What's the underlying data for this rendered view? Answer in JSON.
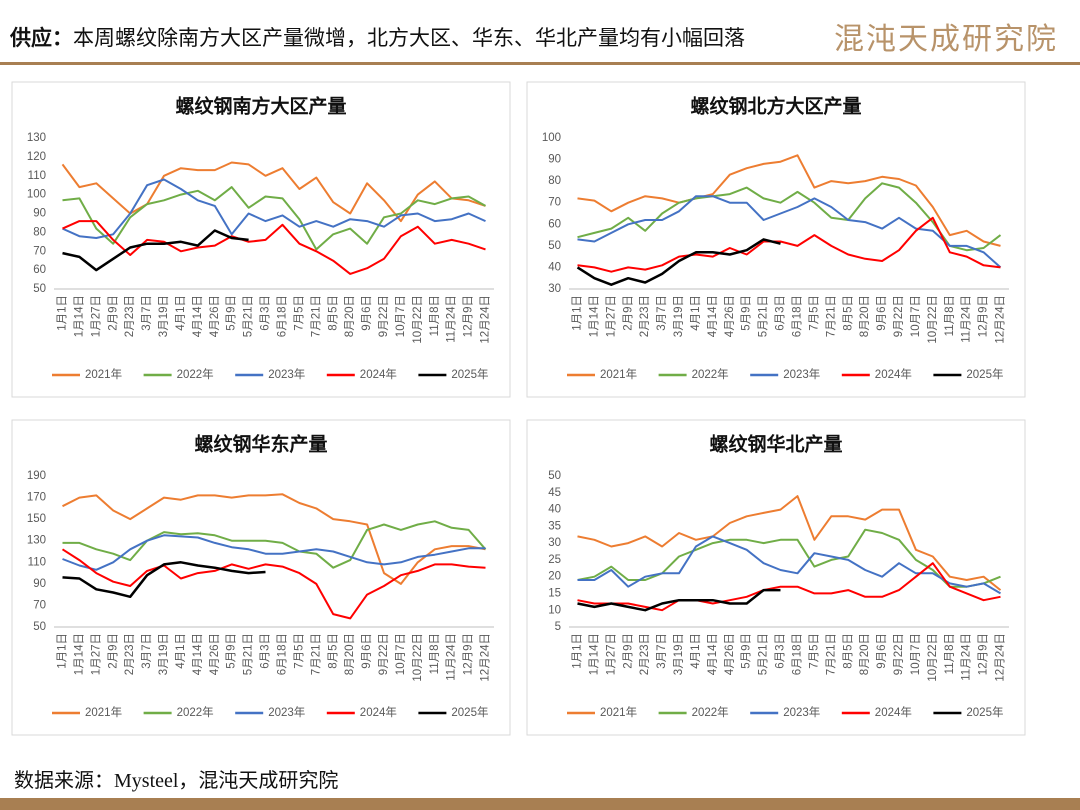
{
  "header": {
    "label": "供应：",
    "title": "本周螺纹除南方大区产量微增，北方大区、华东、华北产量均有小幅回落",
    "logo": "混沌天成研究院"
  },
  "footer": {
    "source": "数据来源：Mysteel，混沌天成研究院"
  },
  "chart_data": [
    {
      "type": "line",
      "title": "螺纹钢南方大区产量",
      "legend": "bottom",
      "grid": false,
      "categories": [
        "1月1日",
        "1月14日",
        "1月27日",
        "2月9日",
        "2月23日",
        "3月7日",
        "3月19日",
        "4月1日",
        "4月14日",
        "4月26日",
        "5月9日",
        "5月21日",
        "6月3日",
        "6月18日",
        "7月5日",
        "7月21日",
        "8月5日",
        "8月20日",
        "9月6日",
        "9月22日",
        "10月7日",
        "10月22日",
        "11月8日",
        "11月24日",
        "12月9日",
        "12月24日"
      ],
      "ylim": [
        50,
        130
      ],
      "yticks": [
        50,
        60,
        70,
        80,
        90,
        100,
        110,
        120,
        130
      ],
      "series": [
        {
          "name": "2021年",
          "color": "#ed7d31",
          "values": [
            116,
            104,
            106,
            98,
            90,
            95,
            110,
            114,
            113,
            113,
            117,
            116,
            110,
            114,
            103,
            109,
            96,
            90,
            106,
            97,
            86,
            100,
            107,
            98,
            97,
            94
          ]
        },
        {
          "name": "2022年",
          "color": "#70ad47",
          "values": [
            97,
            98,
            82,
            74,
            88,
            95,
            97,
            100,
            102,
            97,
            104,
            93,
            99,
            98,
            87,
            71,
            79,
            82,
            74,
            88,
            90,
            97,
            95,
            98,
            99,
            94
          ]
        },
        {
          "name": "2023年",
          "color": "#4472c4",
          "values": [
            82,
            78,
            77,
            79,
            90,
            105,
            108,
            103,
            97,
            94,
            79,
            90,
            86,
            89,
            83,
            86,
            83,
            87,
            86,
            83,
            89,
            90,
            86,
            87,
            90,
            86
          ]
        },
        {
          "name": "2024年",
          "color": "#ff0000",
          "values": [
            82,
            86,
            86,
            76,
            68,
            76,
            75,
            70,
            72,
            73,
            78,
            75,
            76,
            84,
            74,
            70,
            65,
            58,
            61,
            66,
            78,
            83,
            74,
            76,
            74,
            71
          ]
        },
        {
          "name": "2025年",
          "color": "#000000",
          "values": [
            69,
            67,
            60,
            66,
            72,
            74,
            74,
            75,
            73,
            81,
            77,
            76,
            null,
            null,
            null,
            null,
            null,
            null,
            null,
            null,
            null,
            null,
            null,
            null,
            null,
            null
          ]
        }
      ]
    },
    {
      "type": "line",
      "title": "螺纹钢北方大区产量",
      "legend": "bottom",
      "grid": false,
      "categories": [
        "1月1日",
        "1月14日",
        "1月27日",
        "2月9日",
        "2月23日",
        "3月7日",
        "3月19日",
        "4月1日",
        "4月14日",
        "4月26日",
        "5月9日",
        "5月21日",
        "6月3日",
        "6月18日",
        "7月5日",
        "7月21日",
        "8月5日",
        "8月20日",
        "9月6日",
        "9月22日",
        "10月7日",
        "10月22日",
        "11月8日",
        "11月24日",
        "12月9日",
        "12月24日"
      ],
      "ylim": [
        30,
        100
      ],
      "yticks": [
        30,
        40,
        50,
        60,
        70,
        80,
        90,
        100
      ],
      "series": [
        {
          "name": "2021年",
          "color": "#ed7d31",
          "values": [
            72,
            71,
            66,
            70,
            73,
            72,
            70,
            72,
            74,
            83,
            86,
            88,
            89,
            92,
            77,
            80,
            79,
            80,
            82,
            81,
            78,
            68,
            55,
            57,
            52,
            50
          ]
        },
        {
          "name": "2022年",
          "color": "#70ad47",
          "values": [
            54,
            56,
            58,
            63,
            57,
            65,
            70,
            72,
            73,
            74,
            77,
            72,
            70,
            75,
            70,
            63,
            62,
            72,
            79,
            77,
            70,
            61,
            50,
            48,
            49,
            55
          ]
        },
        {
          "name": "2023年",
          "color": "#4472c4",
          "values": [
            53,
            52,
            56,
            60,
            62,
            62,
            66,
            73,
            73,
            70,
            70,
            62,
            65,
            68,
            72,
            68,
            62,
            61,
            58,
            63,
            58,
            57,
            50,
            50,
            47,
            40
          ]
        },
        {
          "name": "2024年",
          "color": "#ff0000",
          "values": [
            41,
            40,
            38,
            40,
            39,
            41,
            45,
            46,
            45,
            49,
            46,
            52,
            52,
            50,
            55,
            50,
            46,
            44,
            43,
            48,
            57,
            63,
            47,
            45,
            41,
            40
          ]
        },
        {
          "name": "2025年",
          "color": "#000000",
          "values": [
            40,
            35,
            32,
            35,
            33,
            37,
            43,
            47,
            47,
            46,
            48,
            53,
            51,
            null,
            null,
            null,
            null,
            null,
            null,
            null,
            null,
            null,
            null,
            null,
            null,
            null
          ]
        }
      ]
    },
    {
      "type": "line",
      "title": "螺纹钢华东产量",
      "legend": "bottom",
      "grid": false,
      "categories": [
        "1月1日",
        "1月14日",
        "1月27日",
        "2月9日",
        "2月23日",
        "3月7日",
        "3月19日",
        "4月1日",
        "4月14日",
        "4月26日",
        "5月9日",
        "5月21日",
        "6月3日",
        "6月18日",
        "7月5日",
        "7月21日",
        "8月5日",
        "8月20日",
        "9月6日",
        "9月22日",
        "10月7日",
        "10月22日",
        "11月8日",
        "11月24日",
        "12月9日",
        "12月24日"
      ],
      "ylim": [
        50,
        190
      ],
      "yticks": [
        50,
        70,
        90,
        110,
        130,
        150,
        170,
        190
      ],
      "series": [
        {
          "name": "2021年",
          "color": "#ed7d31",
          "values": [
            162,
            170,
            172,
            158,
            150,
            160,
            170,
            168,
            172,
            172,
            170,
            172,
            172,
            173,
            165,
            160,
            150,
            148,
            145,
            100,
            90,
            110,
            122,
            125,
            125,
            122
          ]
        },
        {
          "name": "2022年",
          "color": "#70ad47",
          "values": [
            128,
            128,
            122,
            118,
            112,
            130,
            138,
            136,
            137,
            135,
            130,
            130,
            130,
            128,
            120,
            118,
            105,
            112,
            140,
            145,
            140,
            145,
            148,
            142,
            140,
            122
          ]
        },
        {
          "name": "2023年",
          "color": "#4472c4",
          "values": [
            113,
            107,
            103,
            110,
            122,
            130,
            135,
            134,
            133,
            128,
            124,
            122,
            118,
            118,
            120,
            122,
            120,
            115,
            110,
            108,
            110,
            115,
            117,
            120,
            123,
            123
          ]
        },
        {
          "name": "2024年",
          "color": "#ff0000",
          "values": [
            122,
            112,
            100,
            92,
            88,
            102,
            107,
            95,
            100,
            102,
            108,
            104,
            108,
            106,
            100,
            90,
            62,
            58,
            80,
            88,
            98,
            102,
            108,
            108,
            106,
            105
          ]
        },
        {
          "name": "2025年",
          "color": "#000000",
          "values": [
            96,
            95,
            85,
            82,
            78,
            98,
            108,
            110,
            107,
            105,
            102,
            100,
            101,
            null,
            null,
            null,
            null,
            null,
            null,
            null,
            null,
            null,
            null,
            null,
            null,
            null
          ]
        }
      ]
    },
    {
      "type": "line",
      "title": "螺纹钢华北产量",
      "legend": "bottom",
      "grid": false,
      "categories": [
        "1月1日",
        "1月14日",
        "1月27日",
        "2月9日",
        "2月23日",
        "3月7日",
        "3月19日",
        "4月1日",
        "4月14日",
        "4月26日",
        "5月9日",
        "5月21日",
        "6月3日",
        "6月18日",
        "7月5日",
        "7月21日",
        "8月5日",
        "8月20日",
        "9月6日",
        "9月22日",
        "10月7日",
        "10月22日",
        "11月8日",
        "11月24日",
        "12月9日",
        "12月24日"
      ],
      "ylim": [
        5,
        50
      ],
      "yticks": [
        5,
        10,
        15,
        20,
        25,
        30,
        35,
        40,
        45,
        50
      ],
      "series": [
        {
          "name": "2021年",
          "color": "#ed7d31",
          "values": [
            32,
            31,
            29,
            30,
            32,
            29,
            33,
            31,
            32,
            36,
            38,
            39,
            40,
            44,
            31,
            38,
            38,
            37,
            40,
            40,
            28,
            26,
            20,
            19,
            20,
            16
          ]
        },
        {
          "name": "2022年",
          "color": "#70ad47",
          "values": [
            19,
            20,
            23,
            19,
            19,
            21,
            26,
            28,
            30,
            31,
            31,
            30,
            31,
            31,
            23,
            25,
            26,
            34,
            33,
            31,
            25,
            22,
            17,
            17,
            18,
            20
          ]
        },
        {
          "name": "2023年",
          "color": "#4472c4",
          "values": [
            19,
            19,
            22,
            17,
            20,
            21,
            21,
            29,
            32,
            30,
            28,
            24,
            22,
            21,
            27,
            26,
            25,
            22,
            20,
            24,
            21,
            21,
            18,
            17,
            18,
            15
          ]
        },
        {
          "name": "2024年",
          "color": "#ff0000",
          "values": [
            13,
            12,
            12,
            12,
            11,
            10,
            13,
            13,
            12,
            13,
            14,
            16,
            17,
            17,
            15,
            15,
            16,
            14,
            14,
            16,
            20,
            24,
            17,
            15,
            13,
            14
          ]
        },
        {
          "name": "2025年",
          "color": "#000000",
          "values": [
            12,
            11,
            12,
            11,
            10,
            12,
            13,
            13,
            13,
            12,
            12,
            16,
            16,
            null,
            null,
            null,
            null,
            null,
            null,
            null,
            null,
            null,
            null,
            null,
            null,
            null
          ]
        }
      ]
    }
  ]
}
